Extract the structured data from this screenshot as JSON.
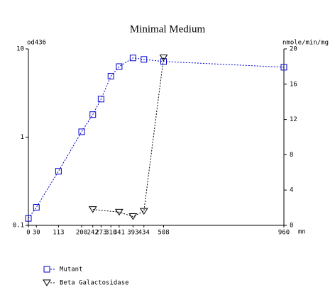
{
  "chart_data": {
    "type": "line",
    "title": "Minimal Medium",
    "y_label": "od436",
    "y2_label": "nmole/min/mg",
    "x_label": "mn",
    "xlim": [
      0,
      960
    ],
    "xticks": [
      0,
      30,
      113,
      200,
      242,
      273,
      310,
      341,
      393,
      434,
      508,
      960
    ],
    "ylim": [
      0.1,
      10
    ],
    "yticks": [
      0.1,
      1,
      10
    ],
    "log_y": true,
    "y2lim": [
      0,
      20
    ],
    "y2ticks": [
      0,
      4,
      8,
      12,
      16,
      20
    ],
    "legend": "bottom-left",
    "series": [
      {
        "name": "Mutant",
        "color": "#0000cc",
        "marker": "square",
        "x": [
          0,
          30,
          113,
          200,
          242,
          273,
          310,
          341,
          393,
          434,
          508,
          960
        ],
        "values": [
          0.12,
          0.16,
          0.41,
          1.15,
          1.8,
          2.7,
          4.9,
          6.3,
          7.9,
          7.6,
          7.2,
          6.2
        ]
      },
      {
        "name": "Beta Galactosidase",
        "color": "#000000",
        "marker": "triangle",
        "axis": "y2",
        "x": [
          242,
          341,
          393,
          434,
          508
        ],
        "values": [
          1.8,
          1.5,
          1.0,
          1.6,
          19.0
        ]
      }
    ]
  }
}
